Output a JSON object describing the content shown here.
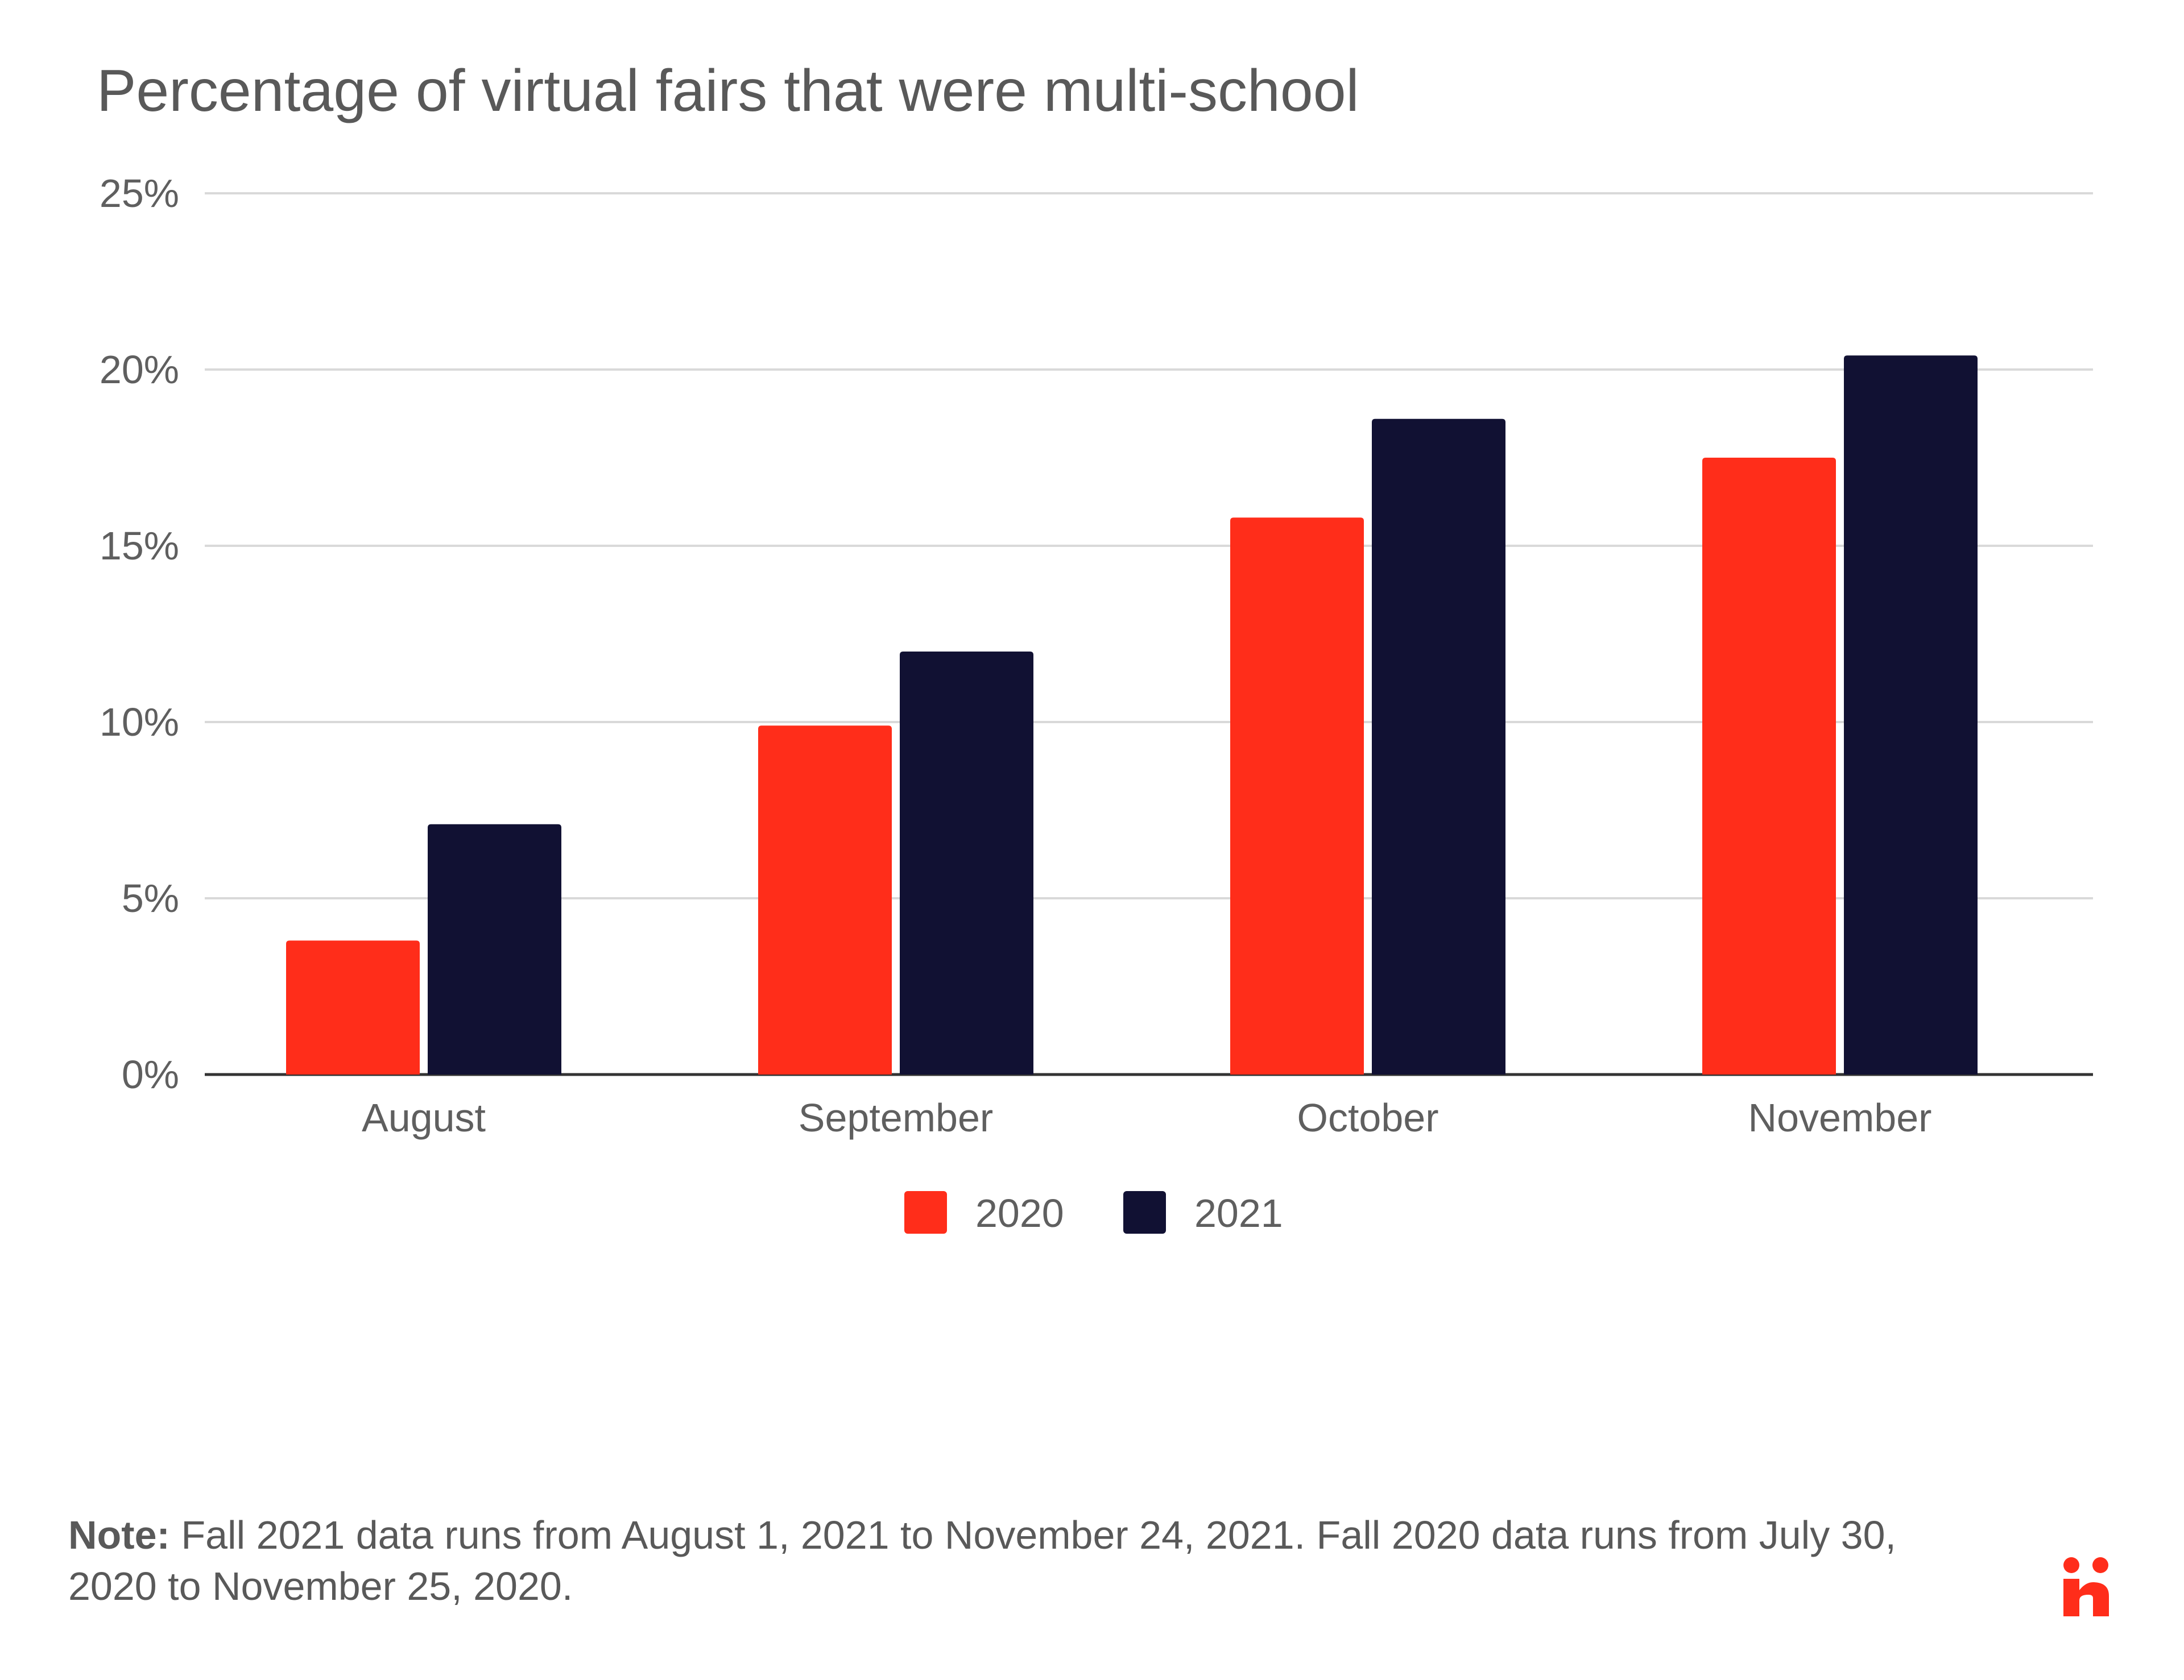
{
  "chart_data": {
    "type": "bar",
    "title": "Percentage of virtual fairs that were multi-school",
    "categories": [
      "August",
      "September",
      "October",
      "November"
    ],
    "series": [
      {
        "name": "2020",
        "color": "#ff2d1a",
        "values": [
          3.8,
          9.9,
          15.8,
          17.5
        ]
      },
      {
        "name": "2021",
        "color": "#111133",
        "values": [
          7.1,
          12.0,
          18.6,
          20.4
        ]
      }
    ],
    "yticks": [
      "0%",
      "5%",
      "10%",
      "15%",
      "20%",
      "25%"
    ],
    "ylim": [
      0,
      25
    ],
    "xlabel": "",
    "ylabel": "",
    "grid": true,
    "legend": "bottom-center"
  },
  "note": {
    "label": "Note:",
    "text": " Fall 2021 data runs from August 1, 2021 to November 24, 2021. Fall 2020 data runs from July 30, 2020 to November 25, 2020."
  },
  "logo": {
    "name": "brand-logo-icon",
    "color": "#ff2d1a"
  }
}
